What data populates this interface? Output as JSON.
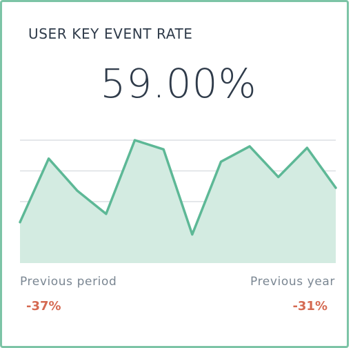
{
  "widget": {
    "title": "USER KEY EVENT RATE",
    "value": "59.00%",
    "previous_period_label": "Previous period",
    "previous_period_change": "-37%",
    "previous_year_label": "Previous year",
    "previous_year_change": "-31%"
  },
  "colors": {
    "border": "#7cc4a6",
    "line": "#5db896",
    "fill": "#d3ebe1",
    "grid": "#dcdfe3",
    "negative": "#d56a52",
    "text": "#2f3b4a",
    "muted": "#7a8692"
  },
  "chart_data": {
    "type": "area",
    "title": "",
    "xlabel": "",
    "ylabel": "",
    "ylim": [
      0,
      4
    ],
    "grid": true,
    "values": [
      1.33,
      3.4,
      2.35,
      1.6,
      4.0,
      3.7,
      0.93,
      3.3,
      3.8,
      2.8,
      3.75,
      2.45
    ]
  }
}
